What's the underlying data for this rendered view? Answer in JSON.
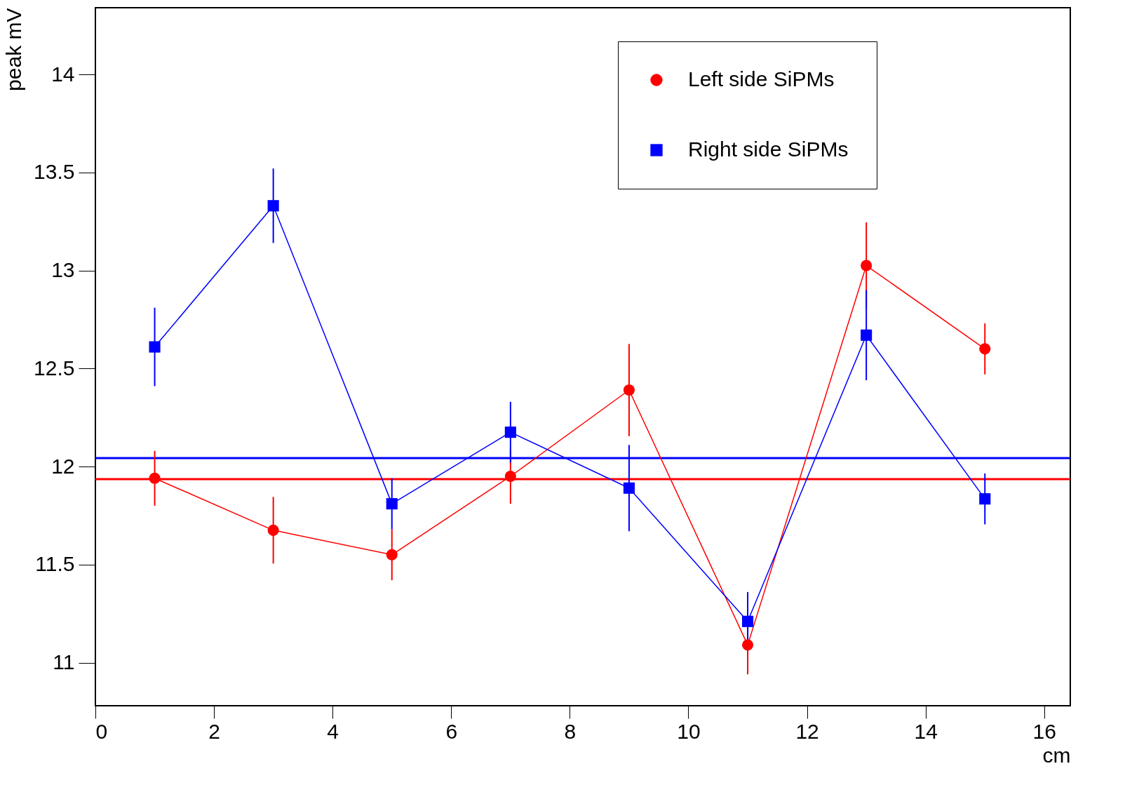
{
  "chart_data": {
    "type": "line",
    "xlabel": "cm",
    "ylabel": "peak mV",
    "x": [
      1,
      3,
      5,
      7,
      9,
      11,
      13,
      15
    ],
    "series": [
      {
        "name": "Left side SiPMs",
        "color": "#ff0000",
        "marker": "circle",
        "values": [
          11.94,
          11.675,
          11.55,
          11.95,
          12.39,
          11.09,
          13.025,
          12.6
        ],
        "errors": [
          0.14,
          0.17,
          0.13,
          0.14,
          0.235,
          0.15,
          0.22,
          0.13
        ]
      },
      {
        "name": "Right side SiPMs",
        "color": "#0000ff",
        "marker": "square",
        "values": [
          12.61,
          13.33,
          11.81,
          12.175,
          11.89,
          11.21,
          12.67,
          11.835
        ],
        "errors": [
          0.2,
          0.19,
          0.13,
          0.155,
          0.22,
          0.15,
          0.23,
          0.13
        ]
      }
    ],
    "ref_lines": [
      {
        "axis": "y",
        "value": 12.043,
        "color": "#0000ff"
      },
      {
        "axis": "y",
        "value": 11.936,
        "color": "#ff0000"
      }
    ],
    "xlim": [
      0,
      16.44
    ],
    "xticks": [
      0,
      2,
      4,
      6,
      8,
      10,
      12,
      14,
      16
    ],
    "ylim": [
      10.78,
      14.34
    ],
    "yticks": [
      11,
      11.5,
      12,
      12.5,
      13,
      13.5,
      14
    ],
    "grid": false,
    "legend": "top right",
    "line_style": "solid"
  }
}
